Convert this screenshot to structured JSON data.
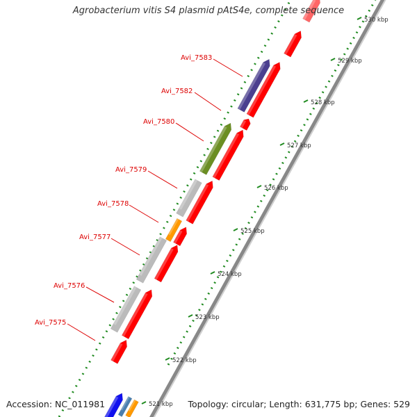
{
  "header": {
    "title": "Agrobacterium vitis S4 plasmid pAtS4e, complete sequence"
  },
  "footer": {
    "accession": "Accession: NC_011981",
    "summary": "Topology: circular; Length: 631,775 bp; Genes: 529"
  },
  "ticks": [
    {
      "label": "521 kbp"
    },
    {
      "label": "522 kbp"
    },
    {
      "label": "523 kbp"
    },
    {
      "label": "524 kbp"
    },
    {
      "label": "525 kbp"
    },
    {
      "label": "526 kbp"
    },
    {
      "label": "527 kbp"
    },
    {
      "label": "528 kbp"
    },
    {
      "label": "529 kbp"
    },
    {
      "label": "530 kbp"
    }
  ],
  "gene_labels": [
    {
      "label": "Avi_7583"
    },
    {
      "label": "Avi_7582"
    },
    {
      "label": "Avi_7580"
    },
    {
      "label": "Avi_7579"
    },
    {
      "label": "Avi_7578"
    },
    {
      "label": "Avi_7577"
    },
    {
      "label": "Avi_7576"
    },
    {
      "label": "Avi_7575"
    }
  ],
  "colors": {
    "cds": "#ff0000",
    "other": "#bbbbbb",
    "purple": "#4b3f8f",
    "green": "#6b8e23",
    "orange": "#ff9900",
    "blue": "#1010ee",
    "steelblue": "#4a7fb0",
    "backbone": "#888888",
    "gc_dots": "#1f8a1f",
    "label": "#dd0000"
  }
}
